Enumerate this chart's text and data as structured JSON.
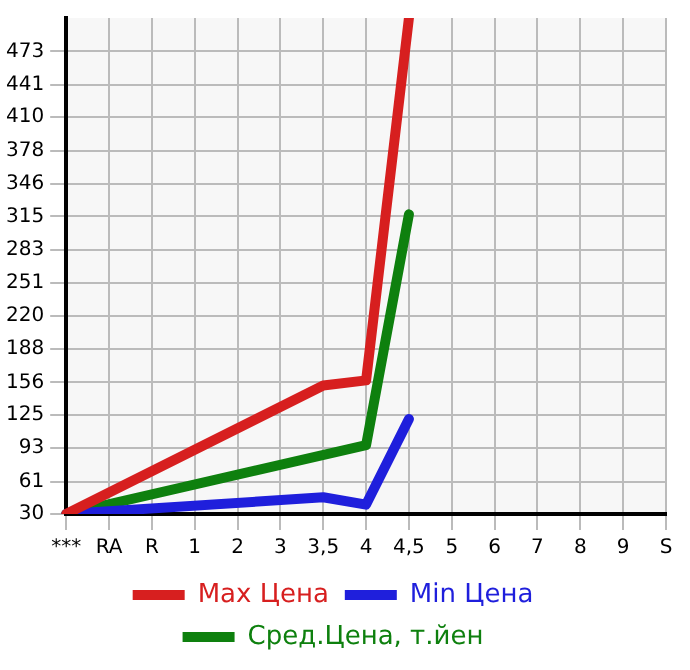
{
  "chart_data": {
    "type": "line",
    "categories": [
      "***",
      "RA",
      "R",
      "1",
      "2",
      "3",
      "3,5",
      "4",
      "4,5",
      "5",
      "6",
      "7",
      "8",
      "9",
      "S"
    ],
    "series": [
      {
        "name": "Max Цена",
        "color": "#d71f1f",
        "values": [
          30,
          null,
          null,
          null,
          null,
          null,
          153,
          158,
          505,
          null,
          null,
          null,
          null,
          null,
          null
        ]
      },
      {
        "name": "Min Цена",
        "color": "#1f1fdc",
        "values": [
          30,
          null,
          null,
          null,
          null,
          null,
          46,
          39,
          121,
          null,
          null,
          null,
          null,
          null,
          null
        ]
      },
      {
        "name": "Сред.Цена, т.йен",
        "color": "#0e800e",
        "values": [
          30,
          null,
          null,
          null,
          null,
          null,
          null,
          96,
          317,
          null,
          null,
          null,
          null,
          null,
          null
        ]
      }
    ],
    "ylim": [
      30,
      505
    ],
    "yticks": [
      30,
      61,
      93,
      125,
      156,
      188,
      220,
      251,
      283,
      315,
      346,
      378,
      410,
      441,
      473
    ],
    "grid": true,
    "legend": "bottom",
    "marker": "none",
    "line_style": "solid"
  }
}
